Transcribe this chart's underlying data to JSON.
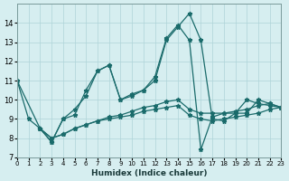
{
  "xlabel": "Humidex (Indice chaleur)",
  "ylabel": "",
  "bg_color": "#d6eef0",
  "line_color": "#1a6b6b",
  "grid_color": "#aed4d8",
  "xlim": [
    0,
    23
  ],
  "ylim": [
    7,
    15
  ],
  "xticks": [
    0,
    1,
    2,
    3,
    4,
    5,
    6,
    7,
    8,
    9,
    10,
    11,
    12,
    13,
    14,
    15,
    16,
    17,
    18,
    19,
    20,
    21,
    22,
    23
  ],
  "yticks": [
    7,
    8,
    9,
    10,
    11,
    12,
    13,
    14
  ],
  "lines": [
    {
      "x": [
        0,
        1,
        2,
        3,
        4,
        5,
        6,
        7,
        8,
        9,
        10,
        11,
        12,
        13,
        14,
        15,
        16,
        17,
        18,
        19,
        20,
        21,
        22,
        23
      ],
      "y": [
        11,
        9,
        8.5,
        7.8,
        9.0,
        9.2,
        10.5,
        11.5,
        11.8,
        10.0,
        10.2,
        10.5,
        11.0,
        13.1,
        13.8,
        14.5,
        13.1,
        9.0,
        8.9,
        9.3,
        9.3,
        10.0,
        9.8,
        9.6
      ]
    },
    {
      "x": [
        0,
        2,
        3,
        4,
        5,
        6,
        7,
        8,
        9,
        10,
        11,
        12,
        13,
        14,
        15,
        16,
        17,
        18,
        19,
        20,
        21,
        22,
        23
      ],
      "y": [
        11,
        8.5,
        7.8,
        9.0,
        9.5,
        10.2,
        11.5,
        11.8,
        10.0,
        10.3,
        10.5,
        11.2,
        13.2,
        13.9,
        13.1,
        7.4,
        9.1,
        9.3,
        9.3,
        10.0,
        9.8,
        9.7,
        9.6
      ]
    },
    {
      "x": [
        2,
        3,
        4,
        5,
        6,
        7,
        8,
        9,
        10,
        11,
        12,
        13,
        14,
        15,
        16,
        17,
        18,
        19,
        20,
        21,
        22,
        23
      ],
      "y": [
        8.5,
        8.0,
        8.2,
        8.5,
        8.7,
        8.9,
        9.1,
        9.2,
        9.4,
        9.6,
        9.7,
        9.9,
        10.0,
        9.5,
        9.3,
        9.3,
        9.3,
        9.4,
        9.5,
        9.7,
        9.8,
        9.6
      ]
    },
    {
      "x": [
        2,
        3,
        4,
        5,
        6,
        7,
        8,
        9,
        10,
        11,
        12,
        13,
        14,
        15,
        16,
        17,
        18,
        19,
        20,
        21,
        22,
        23
      ],
      "y": [
        8.5,
        8.0,
        8.2,
        8.5,
        8.7,
        8.9,
        9.0,
        9.1,
        9.2,
        9.4,
        9.5,
        9.6,
        9.7,
        9.2,
        9.0,
        8.9,
        9.0,
        9.1,
        9.2,
        9.3,
        9.5,
        9.6
      ]
    }
  ]
}
